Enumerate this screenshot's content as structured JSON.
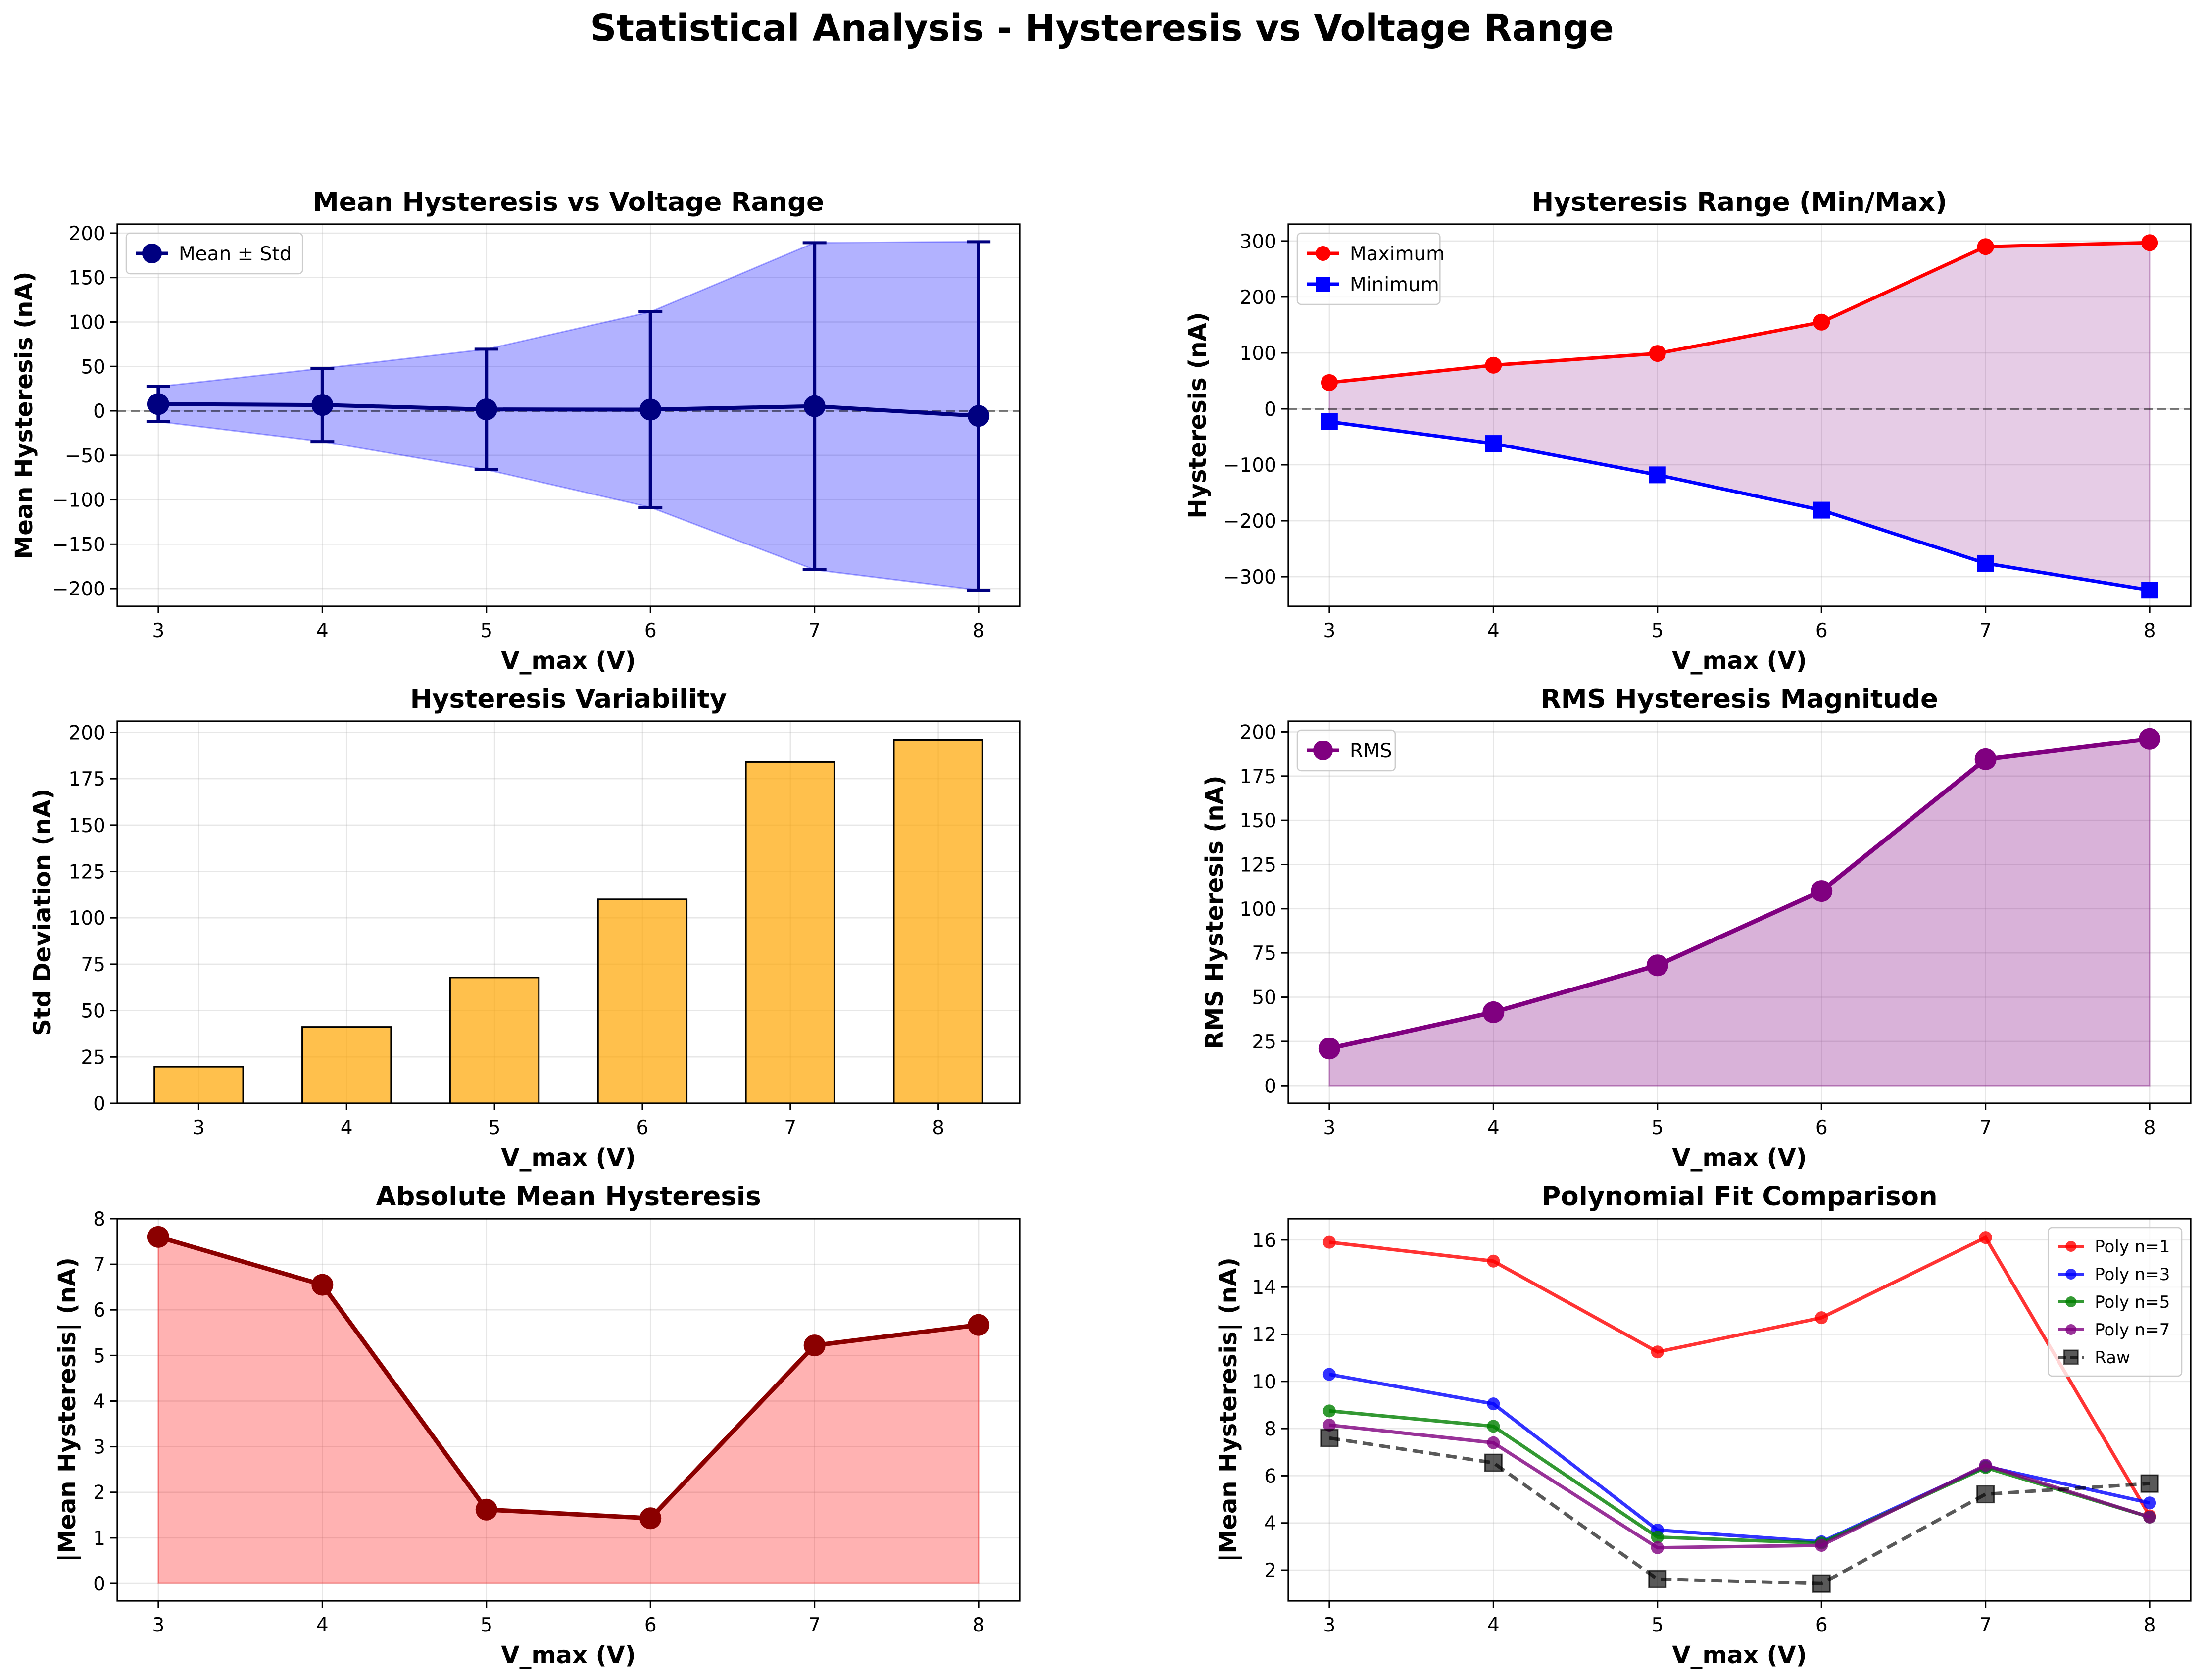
{
  "figure": {
    "suptitle": "Statistical Analysis - Hysteresis vs Voltage Range"
  },
  "chart_data": [
    {
      "id": "mean",
      "type": "line",
      "title": "Mean Hysteresis vs Voltage Range",
      "xlabel": "V_max (V)",
      "ylabel": "Mean Hysteresis (nA)",
      "x": [
        3,
        4,
        5,
        6,
        7,
        8
      ],
      "xticks": [
        3,
        4,
        5,
        6,
        7,
        8
      ],
      "xlim": [
        2.75,
        8.25
      ],
      "ylim": [
        -220,
        210
      ],
      "yticks": [
        -200,
        -150,
        -100,
        -50,
        0,
        50,
        100,
        150,
        200
      ],
      "zero_line": true,
      "grid": true,
      "legend_position": "upper-left",
      "series": [
        {
          "name": "Mean ± Std",
          "values": [
            7.6,
            6.6,
            1.6,
            1.4,
            5.2,
            -5.7
          ],
          "err": [
            19.7,
            41.2,
            67.8,
            110.0,
            184.0,
            196.0
          ],
          "color": "#000080"
        }
      ],
      "band": {
        "color": "#0000ff",
        "opacity": 0.3
      }
    },
    {
      "id": "range",
      "type": "line",
      "title": "Hysteresis Range (Min/Max)",
      "xlabel": "V_max (V)",
      "ylabel": "Hysteresis (nA)",
      "x": [
        3,
        4,
        5,
        6,
        7,
        8
      ],
      "xticks": [
        3,
        4,
        5,
        6,
        7,
        8
      ],
      "xlim": [
        2.75,
        8.25
      ],
      "ylim": [
        -353,
        330
      ],
      "yticks": [
        -300,
        -200,
        -100,
        0,
        100,
        200,
        300
      ],
      "zero_line": true,
      "grid": true,
      "legend_position": "upper-left",
      "series": [
        {
          "name": "Maximum",
          "values": [
            47,
            78,
            99,
            155,
            290,
            297
          ],
          "color": "#ff0000",
          "marker": "circle"
        },
        {
          "name": "Minimum",
          "values": [
            -23,
            -62,
            -118,
            -181,
            -276,
            -324
          ],
          "color": "#0000ff",
          "marker": "square"
        }
      ],
      "band": {
        "color": "#800080",
        "opacity": 0.2
      }
    },
    {
      "id": "std",
      "type": "bar",
      "title": "Hysteresis Variability",
      "xlabel": "V_max (V)",
      "ylabel": "Std Deviation (nA)",
      "categories": [
        "3",
        "4",
        "5",
        "6",
        "7",
        "8"
      ],
      "x": [
        3,
        4,
        5,
        6,
        7,
        8
      ],
      "values": [
        19.7,
        41.2,
        67.8,
        110.0,
        184.0,
        196.0
      ],
      "xlim": [
        2.45,
        8.55
      ],
      "ylim": [
        0,
        206
      ],
      "yticks": [
        0,
        25,
        50,
        75,
        100,
        125,
        150,
        175,
        200
      ],
      "grid": true,
      "color": "#ffa500"
    },
    {
      "id": "rms",
      "type": "area",
      "title": "RMS Hysteresis Magnitude",
      "xlabel": "V_max (V)",
      "ylabel": "RMS Hysteresis (nA)",
      "x": [
        3,
        4,
        5,
        6,
        7,
        8
      ],
      "xticks": [
        3,
        4,
        5,
        6,
        7,
        8
      ],
      "xlim": [
        2.75,
        8.25
      ],
      "ylim": [
        -10,
        206
      ],
      "yticks": [
        0,
        25,
        50,
        75,
        100,
        125,
        150,
        175,
        200
      ],
      "grid": true,
      "legend_position": "upper-left",
      "series": [
        {
          "name": "RMS",
          "values": [
            21,
            41.5,
            68,
            110,
            184.5,
            196
          ],
          "color": "#800080"
        }
      ]
    },
    {
      "id": "abs",
      "type": "area",
      "title": "Absolute Mean Hysteresis",
      "xlabel": "V_max (V)",
      "ylabel": "|Mean Hysteresis| (nA)",
      "x": [
        3,
        4,
        5,
        6,
        7,
        8
      ],
      "xticks": [
        3,
        4,
        5,
        6,
        7,
        8
      ],
      "xlim": [
        2.75,
        8.25
      ],
      "ylim": [
        -0.38,
        8
      ],
      "yticks": [
        0,
        1,
        2,
        3,
        4,
        5,
        6,
        7,
        8
      ],
      "grid": true,
      "series": [
        {
          "values": [
            7.6,
            6.55,
            1.62,
            1.43,
            5.22,
            5.67
          ],
          "color": "#8b0000"
        }
      ]
    },
    {
      "id": "poly",
      "type": "line",
      "title": "Polynomial Fit Comparison",
      "xlabel": "V_max (V)",
      "ylabel": "|Mean Hysteresis| (nA)",
      "x": [
        3,
        4,
        5,
        6,
        7,
        8
      ],
      "xticks": [
        3,
        4,
        5,
        6,
        7,
        8
      ],
      "xlim": [
        2.75,
        8.25
      ],
      "ylim": [
        0.7,
        16.9
      ],
      "yticks": [
        2,
        4,
        6,
        8,
        10,
        12,
        14,
        16
      ],
      "grid": true,
      "legend_position": "upper-right",
      "series": [
        {
          "name": "Poly n=1",
          "values": [
            15.9,
            15.1,
            11.25,
            12.7,
            16.1,
            4.3
          ],
          "color": "#ff0000",
          "marker": "circle"
        },
        {
          "name": "Poly n=3",
          "values": [
            10.3,
            9.05,
            3.7,
            3.2,
            6.4,
            4.85
          ],
          "color": "#0000ff",
          "marker": "circle"
        },
        {
          "name": "Poly n=5",
          "values": [
            8.75,
            8.1,
            3.4,
            3.15,
            6.35,
            4.25
          ],
          "color": "#008000",
          "marker": "circle"
        },
        {
          "name": "Poly n=7",
          "values": [
            8.15,
            7.4,
            2.95,
            3.05,
            6.45,
            4.25
          ],
          "color": "#800080",
          "marker": "circle"
        },
        {
          "name": "Raw",
          "values": [
            7.6,
            6.55,
            1.62,
            1.43,
            5.22,
            5.67
          ],
          "color": "#000000",
          "marker": "square",
          "dashed": true
        }
      ]
    }
  ]
}
